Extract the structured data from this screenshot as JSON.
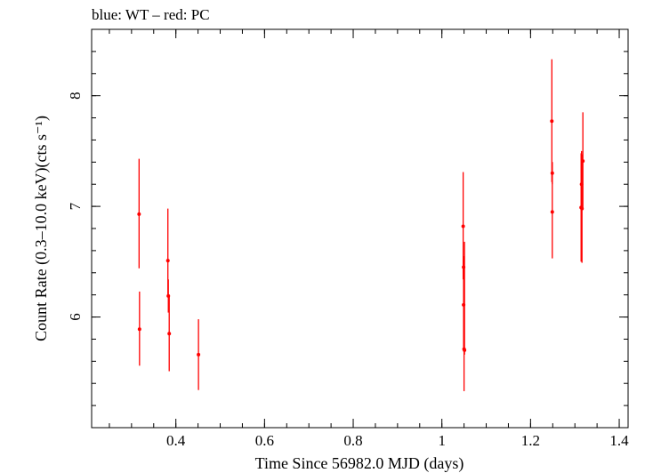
{
  "chart_data": {
    "type": "scatter",
    "title": "blue: WT – red: PC",
    "xlabel": "Time Since 56982.0 MJD (days)",
    "ylabel": "Count Rate (0.3–10.0 keV)(cts s⁻¹)",
    "xlim": [
      0.21,
      1.42
    ],
    "ylim": [
      5.0,
      8.6
    ],
    "x_ticks": [
      0.4,
      0.6,
      0.8,
      1,
      1.2,
      1.4
    ],
    "x_tick_labels": [
      "0.4",
      "0.6",
      "0.8",
      "1",
      "1.2",
      "1.4"
    ],
    "y_ticks": [
      6,
      7,
      8
    ],
    "y_tick_labels": [
      "6",
      "7",
      "8"
    ],
    "grid": false,
    "series": [
      {
        "color": "#ff0000",
        "points": [
          {
            "x": 0.317,
            "y": 6.93,
            "ylo": 6.44,
            "yhi": 7.43
          },
          {
            "x": 0.318,
            "y": 5.89,
            "ylo": 5.56,
            "yhi": 6.23
          },
          {
            "x": 0.382,
            "y": 6.51,
            "ylo": 6.19,
            "yhi": 6.98
          },
          {
            "x": 0.383,
            "y": 6.19,
            "ylo": 6.04,
            "yhi": 6.34
          },
          {
            "x": 0.385,
            "y": 5.85,
            "ylo": 5.51,
            "yhi": 6.19
          },
          {
            "x": 0.451,
            "y": 5.66,
            "ylo": 5.34,
            "yhi": 5.98
          },
          {
            "x": 1.048,
            "y": 6.82,
            "ylo": 6.34,
            "yhi": 7.31
          },
          {
            "x": 1.049,
            "y": 6.45,
            "ylo": 6.34,
            "yhi": 6.55
          },
          {
            "x": 1.049,
            "y": 6.11,
            "ylo": 5.72,
            "yhi": 6.52
          },
          {
            "x": 1.05,
            "y": 5.71,
            "ylo": 5.33,
            "yhi": 6.08
          },
          {
            "x": 1.051,
            "y": 5.7,
            "ylo": 5.66,
            "yhi": 6.68
          },
          {
            "x": 1.248,
            "y": 7.77,
            "ylo": 7.22,
            "yhi": 8.33
          },
          {
            "x": 1.249,
            "y": 7.3,
            "ylo": 7.2,
            "yhi": 7.4
          },
          {
            "x": 1.249,
            "y": 6.95,
            "ylo": 6.53,
            "yhi": 7.4
          },
          {
            "x": 1.314,
            "y": 6.99,
            "ylo": 6.5,
            "yhi": 7.48
          },
          {
            "x": 1.315,
            "y": 7.2,
            "ylo": 6.95,
            "yhi": 7.5
          },
          {
            "x": 1.316,
            "y": 6.98,
            "ylo": 6.49,
            "yhi": 7.47
          },
          {
            "x": 1.318,
            "y": 7.41,
            "ylo": 6.97,
            "yhi": 7.85
          }
        ]
      }
    ]
  }
}
